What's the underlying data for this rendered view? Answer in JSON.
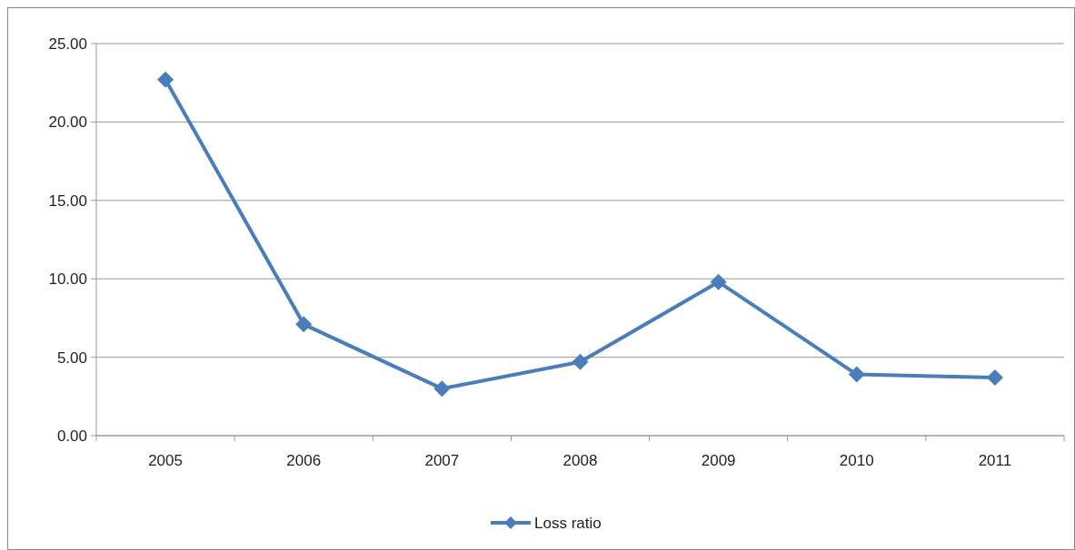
{
  "chart_data": {
    "type": "line",
    "categories": [
      "2005",
      "2006",
      "2007",
      "2008",
      "2009",
      "2010",
      "2011"
    ],
    "series": [
      {
        "name": "Loss ratio",
        "color": "#4a7ebb",
        "values": [
          22.7,
          7.1,
          3.0,
          4.7,
          9.8,
          3.9,
          3.7
        ]
      }
    ],
    "ylim": [
      0,
      25
    ],
    "yticks": [
      {
        "value": 0,
        "label": "0.00"
      },
      {
        "value": 5,
        "label": "5.00"
      },
      {
        "value": 10,
        "label": "10.00"
      },
      {
        "value": 15,
        "label": "15.00"
      },
      {
        "value": 20,
        "label": "20.00"
      },
      {
        "value": 25,
        "label": "25.00"
      }
    ],
    "grid": "y",
    "legend": "bottom",
    "marker": "diamond",
    "line_style": "solid"
  }
}
